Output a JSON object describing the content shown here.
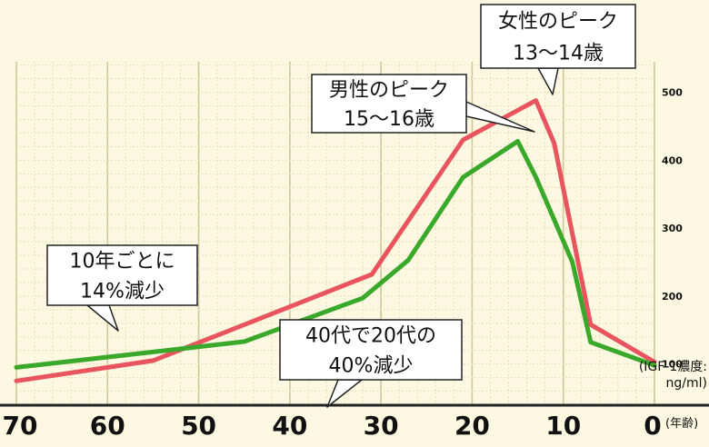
{
  "chart_data": {
    "type": "line",
    "x_axis": {
      "direction": "reversed",
      "ticks": [
        "70",
        "60",
        "50",
        "40",
        "30",
        "20",
        "10",
        "0"
      ],
      "unit": "(年齢)",
      "xlim": [
        0,
        70
      ]
    },
    "y_axis": {
      "position": "right",
      "ticks": [
        "100",
        "200",
        "300",
        "400",
        "500"
      ],
      "unit_line1": "(IGF-1濃度:",
      "unit_line2": "ng/ml)",
      "ylim": [
        50,
        545
      ]
    },
    "grid": true,
    "series": [
      {
        "id": "female",
        "color": "#e8555f",
        "points": [
          [
            70,
            75
          ],
          [
            55,
            105
          ],
          [
            31,
            232
          ],
          [
            21,
            430
          ],
          [
            13,
            488
          ],
          [
            11,
            425
          ],
          [
            7,
            158
          ],
          [
            0,
            103
          ]
        ]
      },
      {
        "id": "male",
        "color": "#3aa92b",
        "points": [
          [
            70,
            95
          ],
          [
            45,
            133
          ],
          [
            32,
            197
          ],
          [
            27,
            253
          ],
          [
            21,
            375
          ],
          [
            15,
            428
          ],
          [
            13,
            375
          ],
          [
            9,
            250
          ],
          [
            7,
            132
          ],
          [
            0,
            98
          ]
        ]
      }
    ],
    "annotations": [
      {
        "id": "female-peak",
        "lines": [
          "女性のピーク",
          "13〜14歳"
        ]
      },
      {
        "id": "male-peak",
        "lines": [
          "男性のピーク",
          "15〜16歳"
        ]
      },
      {
        "id": "decline-per-decade",
        "lines": [
          "10年ごとに",
          "14%減少"
        ]
      },
      {
        "id": "forties-vs-twenties",
        "lines": [
          "40代で20代の",
          "40%減少"
        ]
      }
    ]
  }
}
